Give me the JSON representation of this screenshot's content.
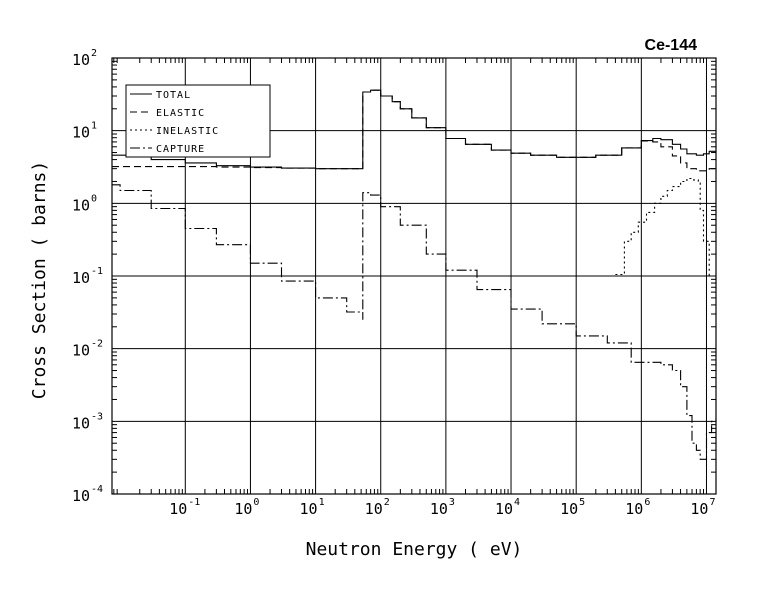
{
  "chart_data": {
    "type": "line",
    "title": "Ce-144",
    "xlabel": "Neutron Energy ( eV)",
    "ylabel": "Cross Section ( barns)",
    "x_scale": "log",
    "y_scale": "log",
    "xlim": [
      0.0075,
      14000000
    ],
    "ylim": [
      0.0001,
      100
    ],
    "grid": true,
    "legend_position": "top-left",
    "x_ticks": [
      {
        "base": "10",
        "exp": "-1",
        "value": 0.1
      },
      {
        "base": "10",
        "exp": "0",
        "value": 1
      },
      {
        "base": "10",
        "exp": "1",
        "value": 10
      },
      {
        "base": "10",
        "exp": "2",
        "value": 100
      },
      {
        "base": "10",
        "exp": "3",
        "value": 1000
      },
      {
        "base": "10",
        "exp": "4",
        "value": 10000
      },
      {
        "base": "10",
        "exp": "5",
        "value": 100000
      },
      {
        "base": "10",
        "exp": "6",
        "value": 1000000
      },
      {
        "base": "10",
        "exp": "7",
        "value": 10000000
      }
    ],
    "y_ticks": [
      {
        "base": "10",
        "exp": "2",
        "value": 100
      },
      {
        "base": "10",
        "exp": "1",
        "value": 10
      },
      {
        "base": "10",
        "exp": "0",
        "value": 1
      },
      {
        "base": "10",
        "exp": "-1",
        "value": 0.1
      },
      {
        "base": "10",
        "exp": "-2",
        "value": 0.01
      },
      {
        "base": "10",
        "exp": "-3",
        "value": 0.001
      },
      {
        "base": "10",
        "exp": "-4",
        "value": 0.0001
      }
    ],
    "series": [
      {
        "name": "TOTAL",
        "dash": "",
        "x": [
          0.0075,
          0.03,
          0.1,
          0.3,
          1,
          3,
          10,
          30,
          53,
          53,
          70,
          100,
          150,
          200,
          300,
          500,
          1000,
          2000,
          5000,
          10000,
          20000,
          50000,
          100000,
          200000,
          500000,
          1000000,
          1500000,
          2000000,
          3000000,
          4000000,
          5000000,
          7000000,
          9000000,
          11000000,
          14000000
        ],
        "y": [
          4.6,
          4.0,
          3.6,
          3.3,
          3.15,
          3.05,
          3.0,
          3.0,
          3.0,
          34,
          36,
          30,
          25,
          20,
          15,
          11,
          7.8,
          6.5,
          5.4,
          4.9,
          4.6,
          4.3,
          4.3,
          4.6,
          5.8,
          7.3,
          7.8,
          7.5,
          6.5,
          5.6,
          4.8,
          4.6,
          4.8,
          5.2,
          5.1
        ]
      },
      {
        "name": "ELASTIC",
        "dash": "7,4",
        "x": [
          0.0075,
          0.03,
          0.1,
          0.3,
          1,
          3,
          10,
          30,
          53,
          53,
          70,
          100,
          150,
          200,
          300,
          500,
          1000,
          2000,
          5000,
          10000,
          20000,
          50000,
          100000,
          200000,
          500000,
          1000000,
          1500000,
          2000000,
          3000000,
          4000000,
          5000000,
          7000000,
          9000000,
          11000000,
          14000000
        ],
        "y": [
          3.2,
          3.2,
          3.2,
          3.15,
          3.1,
          3.05,
          3.0,
          3.0,
          3.0,
          34,
          36,
          30,
          25,
          20,
          15,
          11,
          7.8,
          6.5,
          5.4,
          4.9,
          4.6,
          4.3,
          4.3,
          4.6,
          5.8,
          7.2,
          7.0,
          6.0,
          4.5,
          3.6,
          3.0,
          2.8,
          2.8,
          3.0,
          3.2
        ]
      },
      {
        "name": "INELASTIC",
        "dash": "2,3",
        "x": [
          400000,
          550000,
          550000,
          700000,
          900000,
          1200000,
          1600000,
          2000000,
          2500000,
          3000000,
          4000000,
          5000000,
          6000000,
          7500000,
          8000000,
          8000000,
          9000000,
          11000000,
          14000000
        ],
        "y": [
          0.105,
          0.105,
          0.3,
          0.4,
          0.55,
          0.75,
          1.0,
          1.25,
          1.5,
          1.7,
          2.0,
          2.2,
          2.1,
          1.9,
          0.8,
          0.8,
          0.3,
          0.1,
          0.06
        ]
      },
      {
        "name": "CAPTURE",
        "dash": "10,3,2,3",
        "x": [
          0.0075,
          0.01,
          0.03,
          0.1,
          0.3,
          1,
          3,
          10,
          30,
          53,
          53,
          70,
          100,
          200,
          500,
          1000,
          3000,
          10000,
          30000,
          100000,
          300000,
          500000,
          700000,
          1000000,
          2000000,
          3000000,
          4000000,
          5000000,
          6000000,
          7000000,
          8000000,
          9000000,
          10000000,
          12000000,
          14000000
        ],
        "y": [
          1.8,
          1.5,
          0.85,
          0.45,
          0.27,
          0.15,
          0.085,
          0.05,
          0.032,
          0.025,
          1.4,
          1.3,
          0.9,
          0.5,
          0.2,
          0.12,
          0.065,
          0.035,
          0.022,
          0.015,
          0.012,
          0.012,
          0.0065,
          0.0065,
          0.006,
          0.005,
          0.003,
          0.0012,
          0.0005,
          0.0004,
          0.0003,
          0.0003,
          0.0007,
          0.001,
          0.0011
        ]
      }
    ]
  }
}
